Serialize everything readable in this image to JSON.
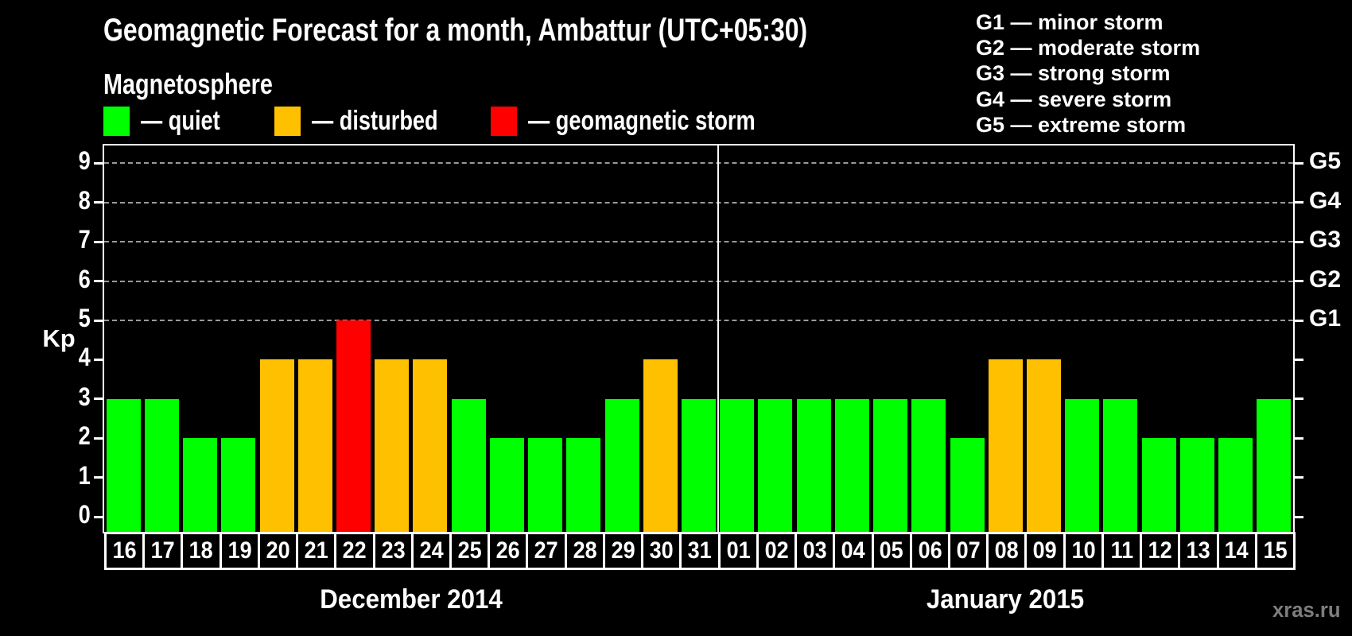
{
  "header": {
    "title": "Geomagnetic Forecast for a month, Ambattur (UTC+05:30)",
    "subtitle": "Magnetosphere"
  },
  "magnetosphere_legend": [
    {
      "state": "quiet",
      "label": "— quiet",
      "color": "#00FF00"
    },
    {
      "state": "disturbed",
      "label": "— disturbed",
      "color": "#FFC000"
    },
    {
      "state": "storm",
      "label": "— geomagnetic storm",
      "color": "#FF0000"
    }
  ],
  "storm_scale_legend": [
    "G1 — minor storm",
    "G2 — moderate storm",
    "G3 — strong storm",
    "G4 — severe storm",
    "G5 — extreme storm"
  ],
  "watermark": "xras.ru",
  "chart_data": {
    "type": "bar",
    "title": "Geomagnetic Forecast for a month, Ambattur (UTC+05:30)",
    "ylabel": "Kp",
    "ylim": [
      0,
      9
    ],
    "yticks": [
      0,
      1,
      2,
      3,
      4,
      5,
      6,
      7,
      8,
      9
    ],
    "gridlines_at": [
      5,
      6,
      7,
      8,
      9
    ],
    "grid": "dashed",
    "right_axis_labels": [
      {
        "kp": 5,
        "label": "G1"
      },
      {
        "kp": 6,
        "label": "G2"
      },
      {
        "kp": 7,
        "label": "G3"
      },
      {
        "kp": 8,
        "label": "G4"
      },
      {
        "kp": 9,
        "label": "G5"
      }
    ],
    "state_colors": {
      "quiet": "#00FF00",
      "disturbed": "#FFC000",
      "storm": "#FF0000"
    },
    "months": [
      {
        "label": "December 2014",
        "days": [
          {
            "day": "16",
            "kp": 3,
            "state": "quiet"
          },
          {
            "day": "17",
            "kp": 3,
            "state": "quiet"
          },
          {
            "day": "18",
            "kp": 2,
            "state": "quiet"
          },
          {
            "day": "19",
            "kp": 2,
            "state": "quiet"
          },
          {
            "day": "20",
            "kp": 4,
            "state": "disturbed"
          },
          {
            "day": "21",
            "kp": 4,
            "state": "disturbed"
          },
          {
            "day": "22",
            "kp": 5,
            "state": "storm"
          },
          {
            "day": "23",
            "kp": 4,
            "state": "disturbed"
          },
          {
            "day": "24",
            "kp": 4,
            "state": "disturbed"
          },
          {
            "day": "25",
            "kp": 3,
            "state": "quiet"
          },
          {
            "day": "26",
            "kp": 2,
            "state": "quiet"
          },
          {
            "day": "27",
            "kp": 2,
            "state": "quiet"
          },
          {
            "day": "28",
            "kp": 2,
            "state": "quiet"
          },
          {
            "day": "29",
            "kp": 3,
            "state": "quiet"
          },
          {
            "day": "30",
            "kp": 4,
            "state": "disturbed"
          },
          {
            "day": "31",
            "kp": 3,
            "state": "quiet"
          }
        ]
      },
      {
        "label": "January 2015",
        "days": [
          {
            "day": "01",
            "kp": 3,
            "state": "quiet"
          },
          {
            "day": "02",
            "kp": 3,
            "state": "quiet"
          },
          {
            "day": "03",
            "kp": 3,
            "state": "quiet"
          },
          {
            "day": "04",
            "kp": 3,
            "state": "quiet"
          },
          {
            "day": "05",
            "kp": 3,
            "state": "quiet"
          },
          {
            "day": "06",
            "kp": 3,
            "state": "quiet"
          },
          {
            "day": "07",
            "kp": 2,
            "state": "quiet"
          },
          {
            "day": "08",
            "kp": 4,
            "state": "disturbed"
          },
          {
            "day": "09",
            "kp": 4,
            "state": "disturbed"
          },
          {
            "day": "10",
            "kp": 3,
            "state": "quiet"
          },
          {
            "day": "11",
            "kp": 3,
            "state": "quiet"
          },
          {
            "day": "12",
            "kp": 2,
            "state": "quiet"
          },
          {
            "day": "13",
            "kp": 2,
            "state": "quiet"
          },
          {
            "day": "14",
            "kp": 2,
            "state": "quiet"
          },
          {
            "day": "15",
            "kp": 3,
            "state": "quiet"
          }
        ]
      }
    ]
  }
}
